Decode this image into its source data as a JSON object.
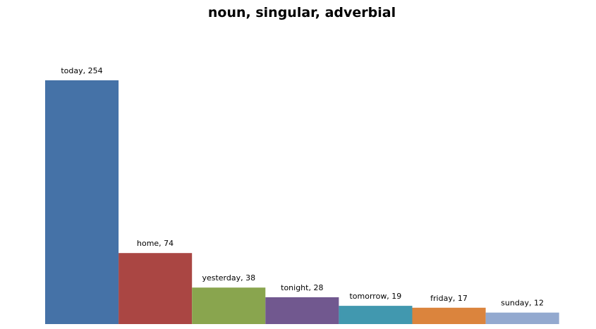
{
  "chart_data": {
    "type": "bar",
    "title": "noun, singular, adverbial",
    "categories": [
      "today",
      "home",
      "yesterday",
      "tonight",
      "tomorrow",
      "friday",
      "sunday"
    ],
    "values": [
      254,
      74,
      38,
      28,
      19,
      17,
      12
    ],
    "data_labels": [
      "today, 254",
      "home, 74",
      "yesterday, 38",
      "tonight, 28",
      "tomorrow, 19",
      "friday, 17",
      "sunday, 12"
    ],
    "colors": [
      "#4572A7",
      "#AA4643",
      "#89A54E",
      "#71588F",
      "#4198AF",
      "#DB843D",
      "#93A9CF"
    ],
    "ylim": [
      0,
      254
    ],
    "grid": false,
    "legend": "none"
  }
}
